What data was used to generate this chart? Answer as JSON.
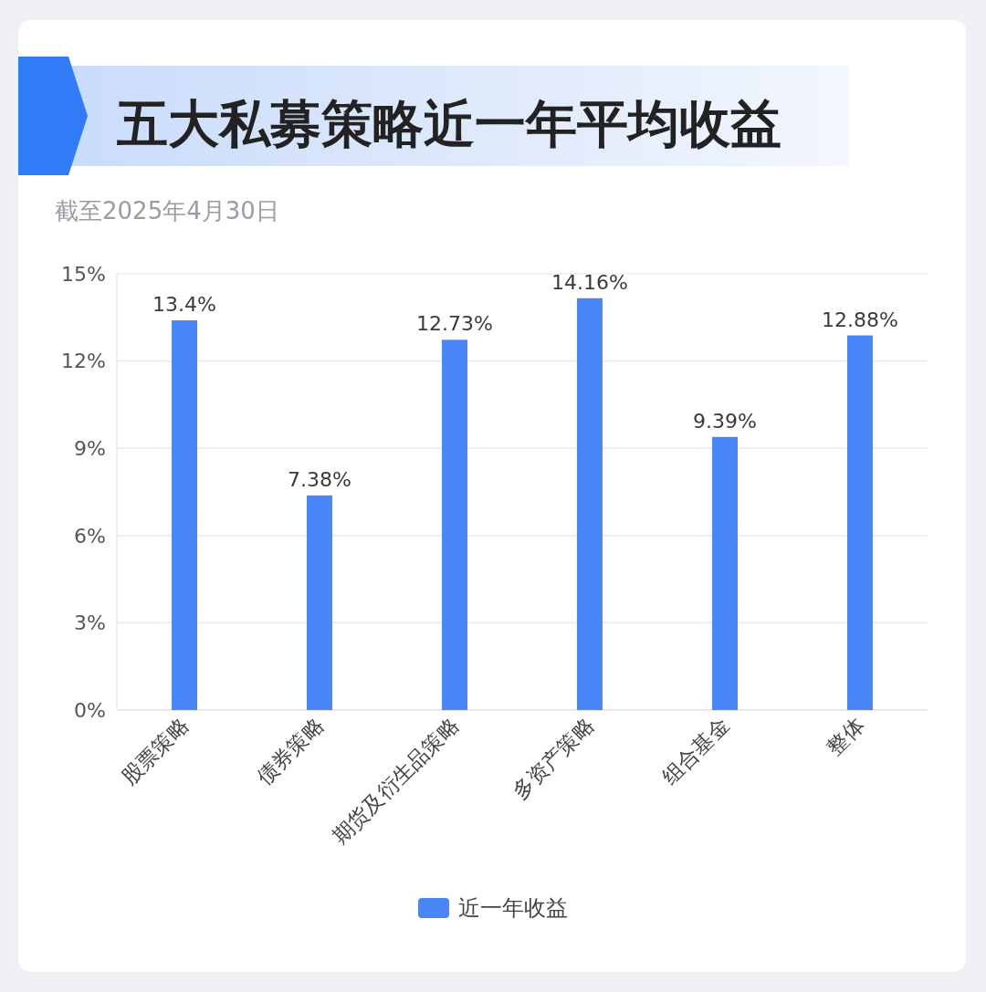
{
  "chart_data": {
    "type": "bar",
    "title": "五大私募策略近一年平均收益",
    "subtitle": "截至2025年4月30日",
    "categories": [
      "股票策略",
      "债券策略",
      "期货及衍生品策略",
      "多资产策略",
      "组合基金",
      "整体"
    ],
    "series": [
      {
        "name": "近一年收益",
        "color": "#4a86f7",
        "values": [
          13.4,
          7.38,
          12.73,
          14.16,
          9.39,
          12.88
        ],
        "value_labels": [
          "13.4%",
          "7.38%",
          "12.73%",
          "14.16%",
          "9.39%",
          "12.88%"
        ]
      }
    ],
    "ylim": [
      0,
      15
    ],
    "yticks": [
      {
        "value": 0,
        "label": "0%"
      },
      {
        "value": 3,
        "label": "3%"
      },
      {
        "value": 6,
        "label": "6%"
      },
      {
        "value": 9,
        "label": "9%"
      },
      {
        "value": 12,
        "label": "12%"
      },
      {
        "value": 15,
        "label": "15%"
      }
    ],
    "grid": "y",
    "legend": "bottom"
  }
}
